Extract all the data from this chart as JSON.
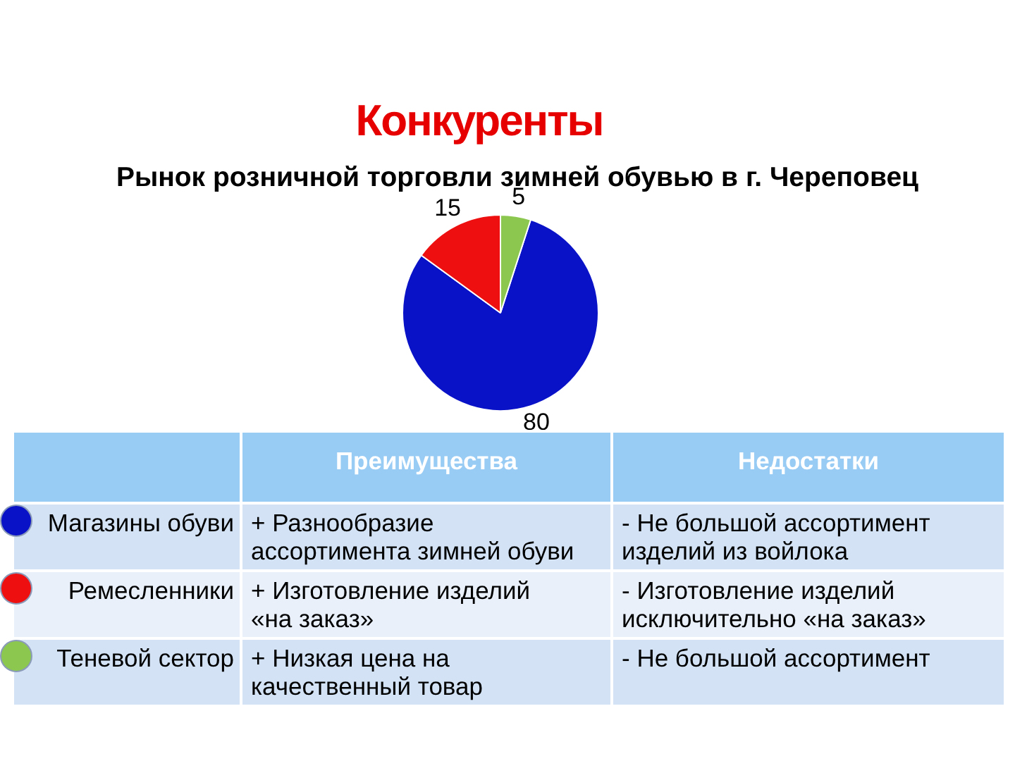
{
  "chart_data": {
    "type": "pie",
    "title": "Конкуренты",
    "subtitle": "Рынок розничной торговли зимней обувью в г. Череповец",
    "categories": [
      "Магазины обуви",
      "Ремесленники",
      "Теневой сектор"
    ],
    "values": [
      80,
      15,
      5
    ],
    "colors": [
      "#0a12c8",
      "#ee1010",
      "#8cc850"
    ],
    "data_labels": true,
    "legend": "bottom",
    "annotations": [
      "Преимущества",
      "Недостатки",
      "+ Разнообразие ассортимента зимней обуви",
      "- Не большой ассортимент изделий из войлока",
      "+ Изготовление изделий «на заказ»",
      "- Изготовление изделий исключительно «на заказ»",
      "+ Низкая цена на качественный товар",
      "- Не большой ассортимент"
    ]
  }
}
